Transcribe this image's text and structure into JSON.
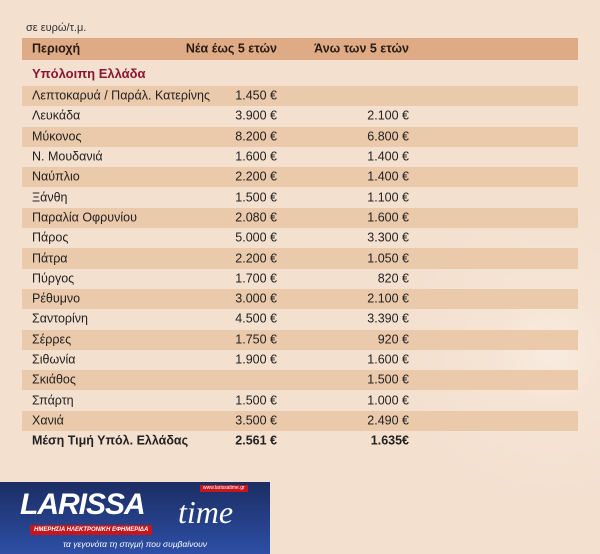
{
  "unit": "σε ευρώ/τ.μ.",
  "header": {
    "region": "Περιοχή",
    "new": "Νέα έως 5 ετών",
    "old": "Άνω των 5 ετών"
  },
  "section": "Υπόλοιπη Ελλάδα",
  "rows": [
    {
      "name": "Λεπτοκαρυά / Παράλ. Κατερίνης",
      "new": "1.450 €",
      "old": ""
    },
    {
      "name": "Λευκάδα",
      "new": "3.900 €",
      "old": "2.100 €"
    },
    {
      "name": "Μύκονος",
      "new": "8.200 €",
      "old": "6.800 €"
    },
    {
      "name": "Ν. Μουδανιά",
      "new": "1.600 €",
      "old": "1.400 €"
    },
    {
      "name": "Ναύπλιο",
      "new": "2.200 €",
      "old": "1.400 €"
    },
    {
      "name": "Ξάνθη",
      "new": "1.500 €",
      "old": "1.100 €"
    },
    {
      "name": "Παραλία Οφρυνίου",
      "new": "2.080 €",
      "old": "1.600 €"
    },
    {
      "name": "Πάρος",
      "new": "5.000 €",
      "old": "3.300 €"
    },
    {
      "name": "Πάτρα",
      "new": "2.200 €",
      "old": "1.050 €"
    },
    {
      "name": "Πύργος",
      "new": "1.700 €",
      "old": "820 €"
    },
    {
      "name": "Ρέθυμνο",
      "new": "3.000 €",
      "old": "2.100 €"
    },
    {
      "name": "Σαντορίνη",
      "new": "4.500 €",
      "old": "3.390 €"
    },
    {
      "name": "Σέρρες",
      "new": "1.750 €",
      "old": "920 €"
    },
    {
      "name": "Σιθωνία",
      "new": "1.900 €",
      "old": "1.600 €"
    },
    {
      "name": "Σκιάθος",
      "new": "",
      "old": "1.500 €"
    },
    {
      "name": "Σπάρτη",
      "new": "1.500 €",
      "old": "1.000 €"
    },
    {
      "name": "Χανιά",
      "new": "3.500 €",
      "old": "2.490 €"
    }
  ],
  "total": {
    "name": "Μέση Τιμή Υπόλ. Ελλάδας",
    "new": "2.561 €",
    "old": "1.635€"
  },
  "logo": {
    "name": "LARISSA",
    "time": "time",
    "site": "www.larissatime.gr",
    "subtitle": "ΗΜΕΡΗΣΙΑ ΗΛΕΚΤΡΟΝΙΚΗ ΕΦΗΜΕΡΙΔΑ",
    "tagline": "τα γεγονότα τη στιγμή που συμβαίνουν"
  }
}
